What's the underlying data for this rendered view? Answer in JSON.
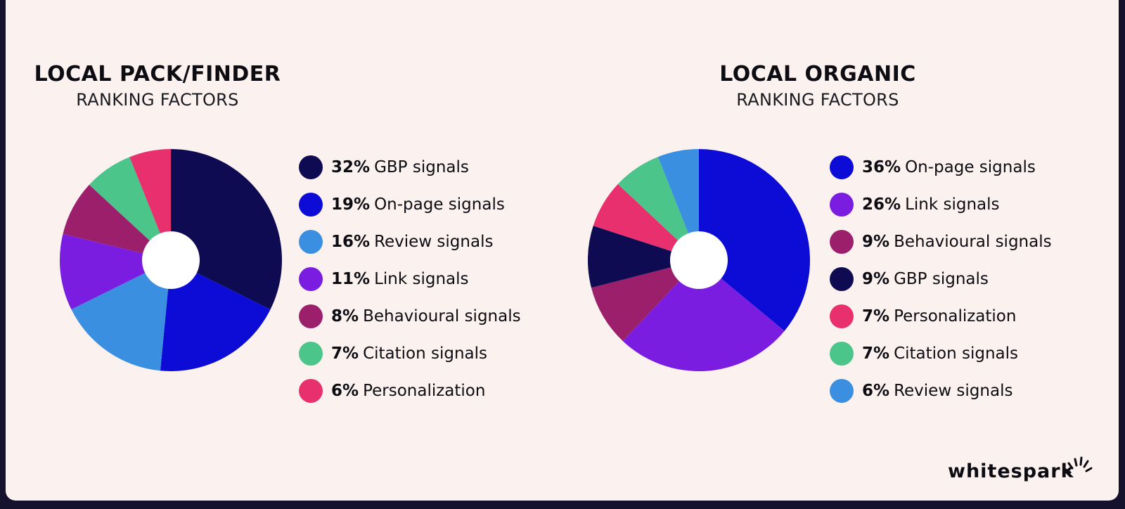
{
  "brand": {
    "name": "whitespark",
    "icon": "spark-icon"
  },
  "chart_data": [
    {
      "type": "pie",
      "title": "LOCAL PACK/FINDER",
      "subtitle": "RANKING FACTORS",
      "legend_position": "right",
      "series": [
        {
          "percent_label": "32%",
          "label": "GBP signals",
          "value": 32,
          "color": "#0e0b52"
        },
        {
          "percent_label": "19%",
          "label": "On-page signals",
          "value": 19,
          "color": "#0c0cd6"
        },
        {
          "percent_label": "16%",
          "label": "Review signals",
          "value": 16,
          "color": "#3a8fe0"
        },
        {
          "percent_label": "11%",
          "label": "Link signals",
          "value": 11,
          "color": "#7a1de0"
        },
        {
          "percent_label": "8%",
          "label": "Behavioural signals",
          "value": 8,
          "color": "#9c1f6c"
        },
        {
          "percent_label": "7%",
          "label": "Citation signals",
          "value": 7,
          "color": "#4cc58a"
        },
        {
          "percent_label": "6%",
          "label": "Personalization",
          "value": 6,
          "color": "#e8306e"
        }
      ]
    },
    {
      "type": "pie",
      "title": "LOCAL ORGANIC",
      "subtitle": "RANKING FACTORS",
      "legend_position": "right",
      "series": [
        {
          "percent_label": "36%",
          "label": "On-page signals",
          "value": 36,
          "color": "#0c0cd6"
        },
        {
          "percent_label": "26%",
          "label": "Link signals",
          "value": 26,
          "color": "#7a1de0"
        },
        {
          "percent_label": "9%",
          "label": "Behavioural signals",
          "value": 9,
          "color": "#9c1f6c"
        },
        {
          "percent_label": "9%",
          "label": "GBP signals",
          "value": 9,
          "color": "#0e0b52"
        },
        {
          "percent_label": "7%",
          "label": "Personalization",
          "value": 7,
          "color": "#e8306e"
        },
        {
          "percent_label": "7%",
          "label": "Citation signals",
          "value": 7,
          "color": "#4cc58a"
        },
        {
          "percent_label": "6%",
          "label": "Review signals",
          "value": 6,
          "color": "#3a8fe0"
        }
      ]
    }
  ]
}
